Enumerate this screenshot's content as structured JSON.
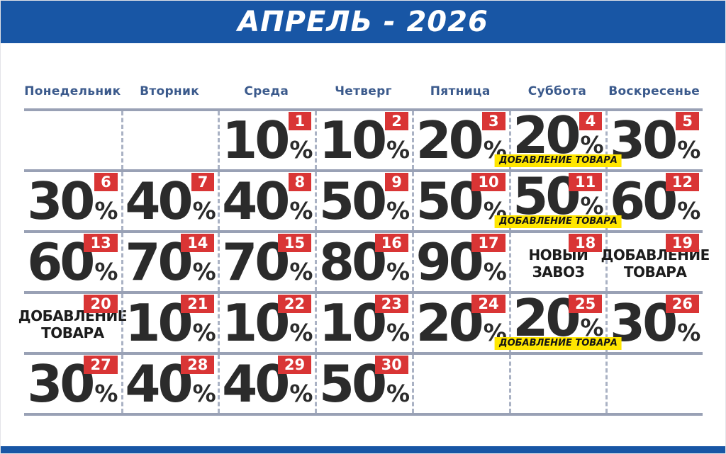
{
  "banner": {
    "title": "АПРЕЛЬ - 2026"
  },
  "weekdays": [
    "Понедельник",
    "Вторник",
    "Среда",
    "Четверг",
    "Пятница",
    "Суббота",
    "Воскресенье"
  ],
  "calendar": {
    "rows": [
      [
        null,
        null,
        {
          "day": "1",
          "discount": "10",
          "percent_sign": "%"
        },
        {
          "day": "2",
          "discount": "10",
          "percent_sign": "%"
        },
        {
          "day": "3",
          "discount": "20",
          "percent_sign": "%"
        },
        {
          "day": "4",
          "discount": "20",
          "percent_sign": "%",
          "flag": "ДОБАВЛЕНИЕ ТОВАРА"
        },
        {
          "day": "5",
          "discount": "30",
          "percent_sign": "%"
        }
      ],
      [
        {
          "day": "6",
          "discount": "30",
          "percent_sign": "%"
        },
        {
          "day": "7",
          "discount": "40",
          "percent_sign": "%"
        },
        {
          "day": "8",
          "discount": "40",
          "percent_sign": "%"
        },
        {
          "day": "9",
          "discount": "50",
          "percent_sign": "%"
        },
        {
          "day": "10",
          "discount": "50",
          "percent_sign": "%"
        },
        {
          "day": "11",
          "discount": "50",
          "percent_sign": "%",
          "flag": "ДОБАВЛЕНИЕ ТОВАРА"
        },
        {
          "day": "12",
          "discount": "60",
          "percent_sign": "%"
        }
      ],
      [
        {
          "day": "13",
          "discount": "60",
          "percent_sign": "%"
        },
        {
          "day": "14",
          "discount": "70",
          "percent_sign": "%"
        },
        {
          "day": "15",
          "discount": "70",
          "percent_sign": "%"
        },
        {
          "day": "16",
          "discount": "80",
          "percent_sign": "%"
        },
        {
          "day": "17",
          "discount": "90",
          "percent_sign": "%"
        },
        {
          "day": "18",
          "message": "НОВЫЙ ЗАВОЗ"
        },
        {
          "day": "19",
          "message": "ДОБАВЛЕНИЕ ТОВАРА"
        }
      ],
      [
        {
          "day": "20",
          "message": "ДОБАВЛЕНИЕ ТОВАРА"
        },
        {
          "day": "21",
          "discount": "10",
          "percent_sign": "%"
        },
        {
          "day": "22",
          "discount": "10",
          "percent_sign": "%"
        },
        {
          "day": "23",
          "discount": "10",
          "percent_sign": "%"
        },
        {
          "day": "24",
          "discount": "20",
          "percent_sign": "%"
        },
        {
          "day": "25",
          "discount": "20",
          "percent_sign": "%",
          "flag": "ДОБАВЛЕНИЕ ТОВАРА"
        },
        {
          "day": "26",
          "discount": "30",
          "percent_sign": "%"
        }
      ],
      [
        {
          "day": "27",
          "discount": "30",
          "percent_sign": "%"
        },
        {
          "day": "28",
          "discount": "40",
          "percent_sign": "%"
        },
        {
          "day": "29",
          "discount": "40",
          "percent_sign": "%"
        },
        {
          "day": "30",
          "discount": "50",
          "percent_sign": "%"
        },
        null,
        null,
        null
      ]
    ]
  },
  "colors": {
    "header_bg": "#1856a5",
    "weekday_text": "#3b5a8c",
    "grid_line": "#99a1b5",
    "dash_line": "#aab2c4",
    "badge_bg": "#d93535",
    "flag_bg": "#ffe600",
    "ink": "#2b2b2b"
  }
}
